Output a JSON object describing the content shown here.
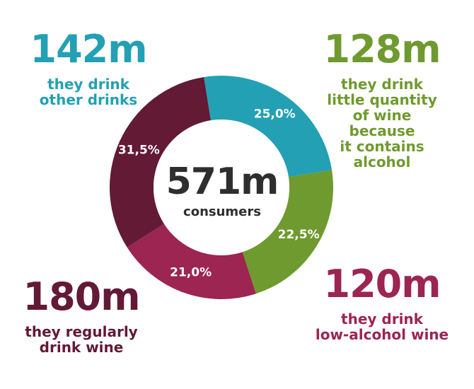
{
  "chart_data": {
    "type": "pie",
    "center": {
      "value": "571m",
      "label": "consumers"
    },
    "slices": [
      {
        "label": "they drink little quantity of wine because it contains alcohol",
        "count": "128m",
        "value": 22.5,
        "value_label": "22,5%",
        "color": "#6f9a2f"
      },
      {
        "label": "they drink low-alcohol wine",
        "count": "120m",
        "value": 21.0,
        "value_label": "21,0%",
        "color": "#9c2552"
      },
      {
        "label": "they regularly drink wine",
        "count": "180m",
        "value": 31.5,
        "value_label": "31,5%",
        "color": "#621a35"
      },
      {
        "label": "they drink other drinks",
        "count": "142m",
        "value": 25.0,
        "value_label": "25,0%",
        "color": "#23a0b4"
      }
    ]
  },
  "callouts": {
    "other": {
      "count": "142m",
      "lines": [
        "they drink",
        "other drinks"
      ]
    },
    "little": {
      "count": "128m",
      "lines": [
        "they drink",
        "little quantity",
        "of wine",
        "because",
        "it contains",
        "alcohol"
      ]
    },
    "regular": {
      "count": "180m",
      "lines": [
        "they regularly",
        "drink wine"
      ]
    },
    "low": {
      "count": "120m",
      "lines": [
        "they drink",
        "low-alcohol wine"
      ]
    }
  }
}
